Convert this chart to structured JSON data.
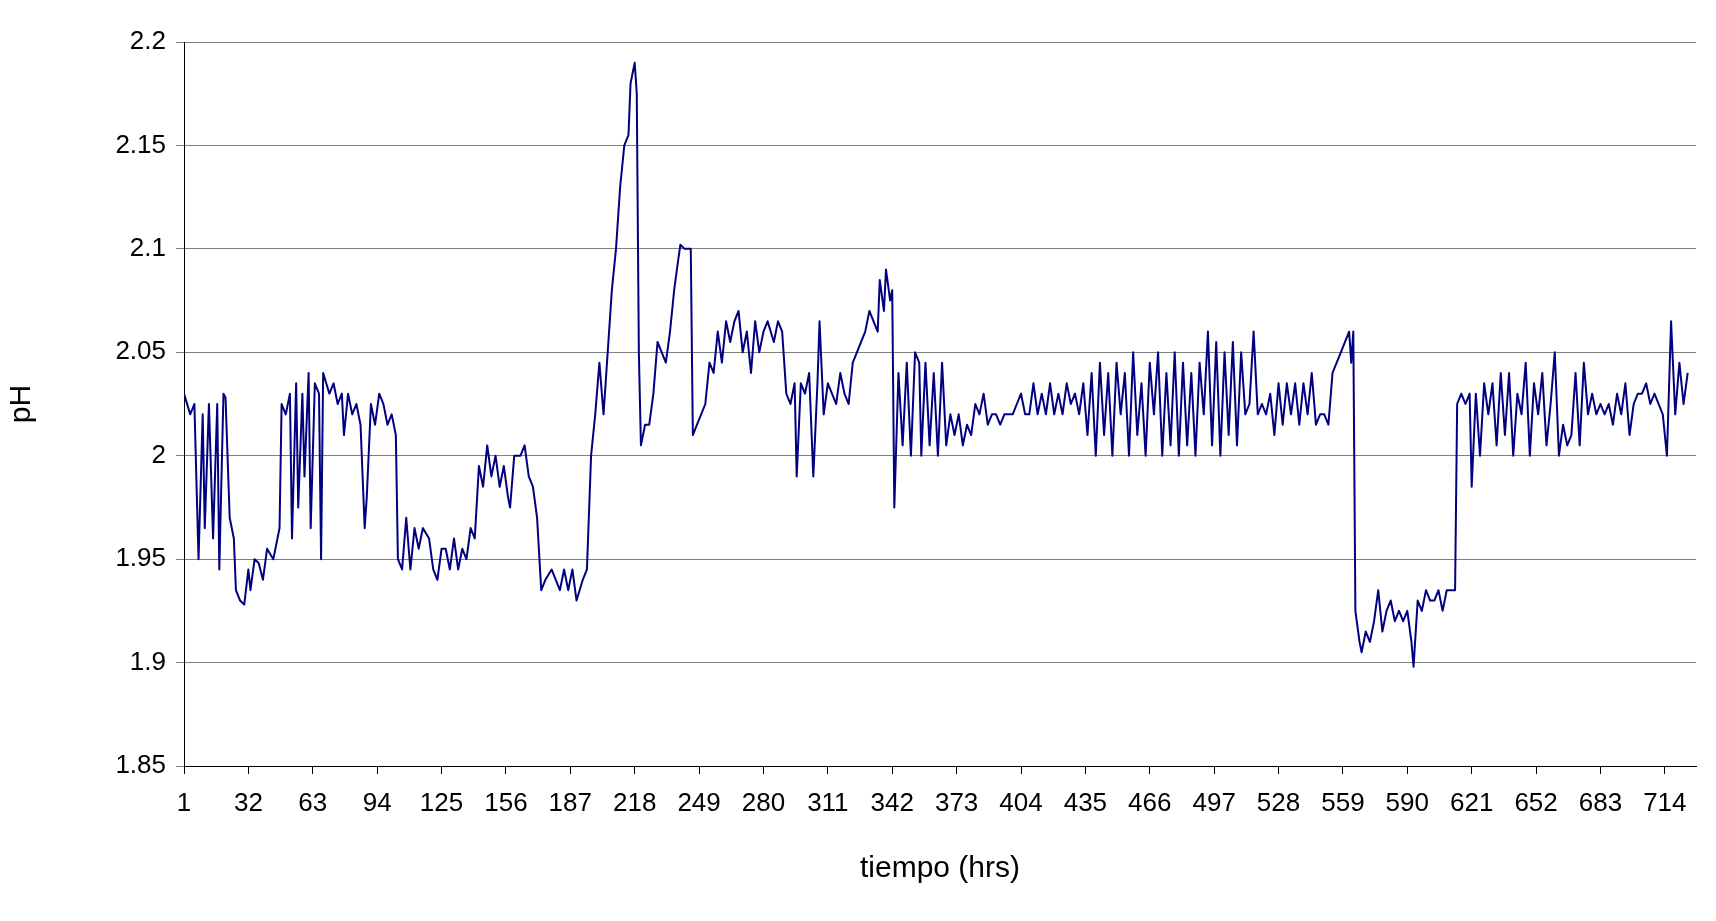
{
  "chart_data": {
    "type": "line",
    "xlabel": "tiempo (hrs)",
    "ylabel": "pH",
    "color": "#000080",
    "grid": "y",
    "marker": "none",
    "xlim": [
      1,
      729
    ],
    "xticks": [
      1,
      32,
      63,
      94,
      125,
      156,
      187,
      218,
      249,
      280,
      311,
      342,
      373,
      404,
      435,
      466,
      497,
      528,
      559,
      590,
      621,
      652,
      683,
      714
    ],
    "ylim": [
      1.85,
      2.2
    ],
    "yticks": [
      1.85,
      1.9,
      1.95,
      2,
      2.05,
      2.1,
      2.15,
      2.2
    ],
    "x": [
      1,
      4,
      6,
      8,
      10,
      11,
      13,
      15,
      17,
      18,
      20,
      21,
      23,
      25,
      26,
      28,
      30,
      32,
      33,
      35,
      37,
      39,
      41,
      44,
      46,
      47,
      48,
      50,
      52,
      53,
      55,
      56,
      58,
      59,
      61,
      62,
      64,
      66,
      67,
      68,
      71,
      73,
      75,
      77,
      78,
      80,
      82,
      84,
      86,
      88,
      89,
      91,
      93,
      95,
      97,
      99,
      101,
      103,
      104,
      106,
      108,
      110,
      112,
      114,
      116,
      119,
      121,
      123,
      125,
      127,
      129,
      131,
      133,
      135,
      137,
      139,
      141,
      143,
      145,
      147,
      149,
      151,
      153,
      155,
      157,
      158,
      160,
      163,
      165,
      167,
      169,
      171,
      173,
      175,
      178,
      180,
      182,
      184,
      186,
      188,
      190,
      193,
      195,
      197,
      199,
      201,
      203,
      205,
      207,
      209,
      211,
      213,
      215,
      216,
      218,
      219,
      220,
      221,
      223,
      225,
      227,
      229,
      231,
      233,
      235,
      237,
      239,
      240,
      242,
      244,
      245,
      246,
      248,
      250,
      252,
      254,
      256,
      258,
      260,
      262,
      264,
      266,
      268,
      270,
      272,
      274,
      276,
      278,
      280,
      282,
      285,
      287,
      289,
      291,
      293,
      295,
      296,
      298,
      300,
      302,
      304,
      306,
      307,
      309,
      311,
      313,
      315,
      317,
      319,
      321,
      323,
      325,
      327,
      329,
      331,
      333,
      335,
      336,
      338,
      339,
      341,
      342,
      343,
      345,
      347,
      349,
      351,
      353,
      355,
      356,
      358,
      360,
      362,
      364,
      366,
      368,
      370,
      372,
      374,
      376,
      378,
      380,
      382,
      384,
      386,
      388,
      390,
      392,
      394,
      396,
      400,
      402,
      404,
      406,
      408,
      410,
      412,
      414,
      416,
      418,
      420,
      422,
      424,
      426,
      428,
      430,
      432,
      434,
      436,
      438,
      440,
      442,
      444,
      446,
      448,
      450,
      452,
      454,
      456,
      458,
      460,
      462,
      464,
      466,
      468,
      470,
      472,
      474,
      476,
      478,
      480,
      482,
      484,
      486,
      488,
      490,
      492,
      494,
      496,
      498,
      500,
      502,
      504,
      506,
      508,
      510,
      512,
      514,
      516,
      518,
      520,
      522,
      524,
      526,
      528,
      530,
      532,
      534,
      536,
      538,
      540,
      542,
      544,
      546,
      548,
      550,
      552,
      554,
      556,
      558,
      560,
      562,
      563,
      564,
      565,
      567,
      568,
      570,
      572,
      574,
      576,
      578,
      580,
      582,
      584,
      586,
      588,
      590,
      592,
      593,
      595,
      597,
      599,
      601,
      603,
      605,
      607,
      609,
      611,
      613,
      614,
      616,
      618,
      620,
      621,
      623,
      625,
      627,
      629,
      631,
      633,
      635,
      637,
      639,
      641,
      643,
      645,
      647,
      649,
      651,
      653,
      655,
      657,
      659,
      661,
      663,
      665,
      667,
      669,
      671,
      673,
      675,
      677,
      679,
      681,
      683,
      685,
      687,
      689,
      691,
      693,
      695,
      697,
      699,
      701,
      703,
      705,
      707,
      709,
      711,
      713,
      715,
      717,
      719,
      721,
      723,
      725
    ],
    "values": [
      2.03,
      2.02,
      2.025,
      1.95,
      2.02,
      1.965,
      2.025,
      1.96,
      2.025,
      1.945,
      2.03,
      2.028,
      1.97,
      1.96,
      1.935,
      1.93,
      1.928,
      1.945,
      1.935,
      1.95,
      1.948,
      1.94,
      1.955,
      1.95,
      1.96,
      1.965,
      2.025,
      2.02,
      2.03,
      1.96,
      2.035,
      1.975,
      2.03,
      1.99,
      2.04,
      1.965,
      2.035,
      2.03,
      1.95,
      2.04,
      2.03,
      2.035,
      2.025,
      2.03,
      2.01,
      2.03,
      2.02,
      2.025,
      2.015,
      1.965,
      1.98,
      2.025,
      2.015,
      2.03,
      2.025,
      2.015,
      2.02,
      2.01,
      1.95,
      1.945,
      1.97,
      1.945,
      1.965,
      1.955,
      1.965,
      1.96,
      1.945,
      1.94,
      1.955,
      1.955,
      1.945,
      1.96,
      1.945,
      1.955,
      1.95,
      1.965,
      1.96,
      1.995,
      1.985,
      2.005,
      1.99,
      2.0,
      1.985,
      1.995,
      1.98,
      1.975,
      2.0,
      2.0,
      2.005,
      1.99,
      1.985,
      1.97,
      1.935,
      1.94,
      1.945,
      1.94,
      1.935,
      1.945,
      1.935,
      1.945,
      1.93,
      1.94,
      1.945,
      2.0,
      2.02,
      2.045,
      2.02,
      2.05,
      2.08,
      2.1,
      2.13,
      2.15,
      2.155,
      2.18,
      2.19,
      2.175,
      2.05,
      2.005,
      2.015,
      2.015,
      2.03,
      2.055,
      2.05,
      2.045,
      2.06,
      2.08,
      2.095,
      2.102,
      2.1,
      2.1,
      2.1,
      2.01,
      2.015,
      2.02,
      2.025,
      2.045,
      2.04,
      2.06,
      2.045,
      2.065,
      2.055,
      2.065,
      2.07,
      2.05,
      2.06,
      2.04,
      2.065,
      2.05,
      2.06,
      2.065,
      2.055,
      2.065,
      2.06,
      2.03,
      2.025,
      2.035,
      1.99,
      2.035,
      2.03,
      2.04,
      1.99,
      2.035,
      2.065,
      2.02,
      2.035,
      2.03,
      2.025,
      2.04,
      2.03,
      2.025,
      2.045,
      2.05,
      2.055,
      2.06,
      2.07,
      2.065,
      2.06,
      2.085,
      2.07,
      2.09,
      2.075,
      2.08,
      1.975,
      2.04,
      2.005,
      2.045,
      2.0,
      2.05,
      2.045,
      2.0,
      2.045,
      2.005,
      2.04,
      2.0,
      2.045,
      2.005,
      2.02,
      2.01,
      2.02,
      2.005,
      2.015,
      2.01,
      2.025,
      2.02,
      2.03,
      2.015,
      2.02,
      2.02,
      2.015,
      2.02,
      2.02,
      2.025,
      2.03,
      2.02,
      2.02,
      2.035,
      2.02,
      2.03,
      2.02,
      2.035,
      2.02,
      2.03,
      2.02,
      2.035,
      2.025,
      2.03,
      2.02,
      2.035,
      2.01,
      2.04,
      2.0,
      2.045,
      2.01,
      2.04,
      2.0,
      2.045,
      2.02,
      2.04,
      2.0,
      2.05,
      2.01,
      2.035,
      2.0,
      2.045,
      2.02,
      2.05,
      2.0,
      2.04,
      2.005,
      2.05,
      2.0,
      2.045,
      2.005,
      2.04,
      2.0,
      2.045,
      2.02,
      2.06,
      2.005,
      2.055,
      2.0,
      2.05,
      2.01,
      2.055,
      2.005,
      2.05,
      2.02,
      2.025,
      2.06,
      2.02,
      2.025,
      2.02,
      2.03,
      2.01,
      2.035,
      2.015,
      2.035,
      2.02,
      2.035,
      2.015,
      2.035,
      2.02,
      2.04,
      2.015,
      2.02,
      2.02,
      2.015,
      2.04,
      2.045,
      2.05,
      2.055,
      2.06,
      2.045,
      2.06,
      1.925,
      1.91,
      1.905,
      1.915,
      1.91,
      1.92,
      1.935,
      1.915,
      1.925,
      1.93,
      1.92,
      1.925,
      1.92,
      1.925,
      1.91,
      1.898,
      1.93,
      1.925,
      1.935,
      1.93,
      1.93,
      1.935,
      1.925,
      1.935,
      1.935,
      1.935,
      2.025,
      2.03,
      2.025,
      2.03,
      1.985,
      2.03,
      2.0,
      2.035,
      2.02,
      2.035,
      2.005,
      2.04,
      2.01,
      2.04,
      2.0,
      2.03,
      2.02,
      2.045,
      2.0,
      2.035,
      2.02,
      2.04,
      2.005,
      2.025,
      2.05,
      2.0,
      2.015,
      2.005,
      2.01,
      2.04,
      2.005,
      2.045,
      2.02,
      2.03,
      2.02,
      2.025,
      2.02,
      2.025,
      2.015,
      2.03,
      2.02,
      2.035,
      2.01,
      2.025,
      2.03,
      2.03,
      2.035,
      2.025,
      2.03,
      2.025,
      2.02,
      2.0,
      2.065,
      2.02,
      2.045,
      2.025,
      2.04
    ]
  }
}
